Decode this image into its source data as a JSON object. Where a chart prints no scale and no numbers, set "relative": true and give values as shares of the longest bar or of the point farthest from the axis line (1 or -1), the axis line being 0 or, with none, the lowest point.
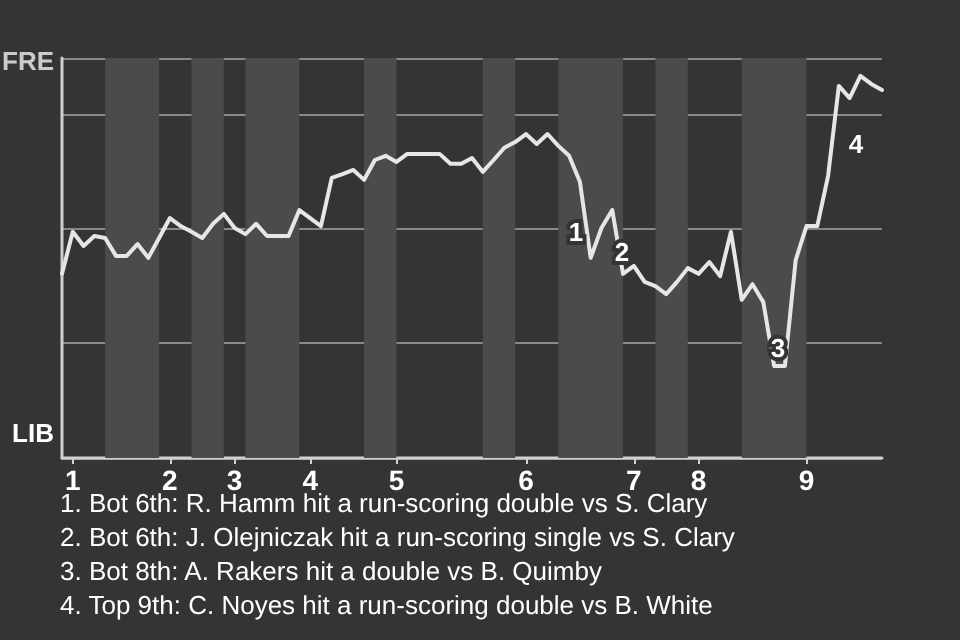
{
  "chart_data": {
    "type": "line",
    "relative": true,
    "categories": [
      null,
      "1",
      null,
      null,
      null,
      null,
      null,
      null,
      null,
      null,
      "2",
      null,
      null,
      null,
      null,
      null,
      "3",
      null,
      null,
      null,
      null,
      null,
      null,
      "4",
      null,
      null,
      null,
      null,
      null,
      null,
      null,
      "5",
      null,
      null,
      null,
      null,
      null,
      null,
      null,
      null,
      null,
      null,
      null,
      "6",
      null,
      null,
      null,
      null,
      null,
      null,
      null,
      null,
      null,
      "7",
      null,
      null,
      null,
      null,
      null,
      "8",
      null,
      null,
      null,
      null,
      null,
      null,
      null,
      null,
      null,
      "9",
      null,
      null,
      null,
      null,
      null,
      null,
      null
    ],
    "series": [
      {
        "color": "#e6e6e6",
        "values": [
          0.482,
          0.592,
          0.555,
          0.581,
          0.576,
          0.529,
          0.529,
          0.56,
          0.524,
          0.576,
          0.628,
          0.607,
          0.592,
          0.576,
          0.613,
          0.639,
          0.602,
          0.586,
          0.613,
          0.581,
          0.581,
          0.581,
          0.649,
          0.628,
          0.607,
          0.733,
          0.743,
          0.754,
          0.728,
          0.78,
          0.791,
          0.775,
          0.796,
          0.796,
          0.796,
          0.796,
          0.77,
          0.77,
          0.785,
          0.749,
          0.78,
          0.812,
          0.827,
          0.848,
          0.822,
          0.848,
          0.817,
          0.791,
          0.723,
          0.524,
          0.602,
          0.649,
          0.482,
          0.503,
          0.461,
          0.45,
          0.429,
          0.461,
          0.497,
          0.482,
          0.513,
          0.476,
          0.592,
          0.414,
          0.455,
          0.408,
          0.241,
          0.241,
          0.518,
          0.607,
          0.607,
          0.738,
          0.974,
          0.942,
          1,
          0.979,
          0.963
        ]
      }
    ],
    "grid": "y",
    "tick_labels": "x",
    "marker": "none",
    "line_style": "solid",
    "annotations": [
      "FRE",
      "LIB",
      "1",
      "2",
      "3",
      "4",
      "1. Bot 6th: R. Hamm hit a run-scoring double vs S. Clary",
      "2. Bot 6th: J. Olejniczak hit a run-scoring single vs S. Clary",
      "3. Bot 8th: A. Rakers hit a double vs B. Quimby",
      "4. Top 9th: C. Noyes hit a run-scoring double vs B. White"
    ]
  }
}
